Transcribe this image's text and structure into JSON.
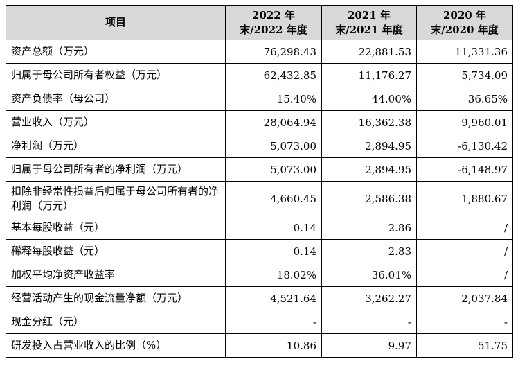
{
  "table": {
    "headers": [
      "项目",
      "2022 年末/2022 年度",
      "2021 年末/2021 年度",
      "2020 年末/2020 年度"
    ],
    "rows": [
      {
        "label": "资产总额（万元）",
        "v2022": "76,298.43",
        "v2021": "22,881.53",
        "v2020": "11,331.36"
      },
      {
        "label": "归属于母公司所有者权益（万元）",
        "v2022": "62,432.85",
        "v2021": "11,176.27",
        "v2020": "5,734.09"
      },
      {
        "label": "资产负债率（母公司）",
        "v2022": "15.40%",
        "v2021": "44.00%",
        "v2020": "36.65%"
      },
      {
        "label": "营业收入（万元）",
        "v2022": "28,064.94",
        "v2021": "16,362.38",
        "v2020": "9,960.01"
      },
      {
        "label": "净利润（万元）",
        "v2022": "5,073.00",
        "v2021": "2,894.95",
        "v2020": "-6,130.42"
      },
      {
        "label": "归属于母公司所有者的净利润（万元）",
        "v2022": "5,073.00",
        "v2021": "2,894.95",
        "v2020": "-6,148.97"
      },
      {
        "label": "扣除非经常性损益后归属于母公司所有者的净利润（万元）",
        "v2022": "4,660.45",
        "v2021": "2,586.38",
        "v2020": "1,880.67"
      },
      {
        "label": "基本每股收益（元）",
        "v2022": "0.14",
        "v2021": "2.86",
        "v2020": "/"
      },
      {
        "label": "稀释每股收益（元）",
        "v2022": "0.14",
        "v2021": "2.83",
        "v2020": "/"
      },
      {
        "label": "加权平均净资产收益率",
        "v2022": "18.02%",
        "v2021": "36.01%",
        "v2020": "/"
      },
      {
        "label": "经营活动产生的现金流量净额（万元）",
        "v2022": "4,521.64",
        "v2021": "3,262.27",
        "v2020": "2,037.84"
      },
      {
        "label": "现金分红（元）",
        "v2022": "-",
        "v2021": "-",
        "v2020": "-"
      },
      {
        "label": "研发投入占营业收入的比例（%）",
        "v2022": "10.86",
        "v2021": "9.97",
        "v2020": "51.75"
      }
    ]
  }
}
